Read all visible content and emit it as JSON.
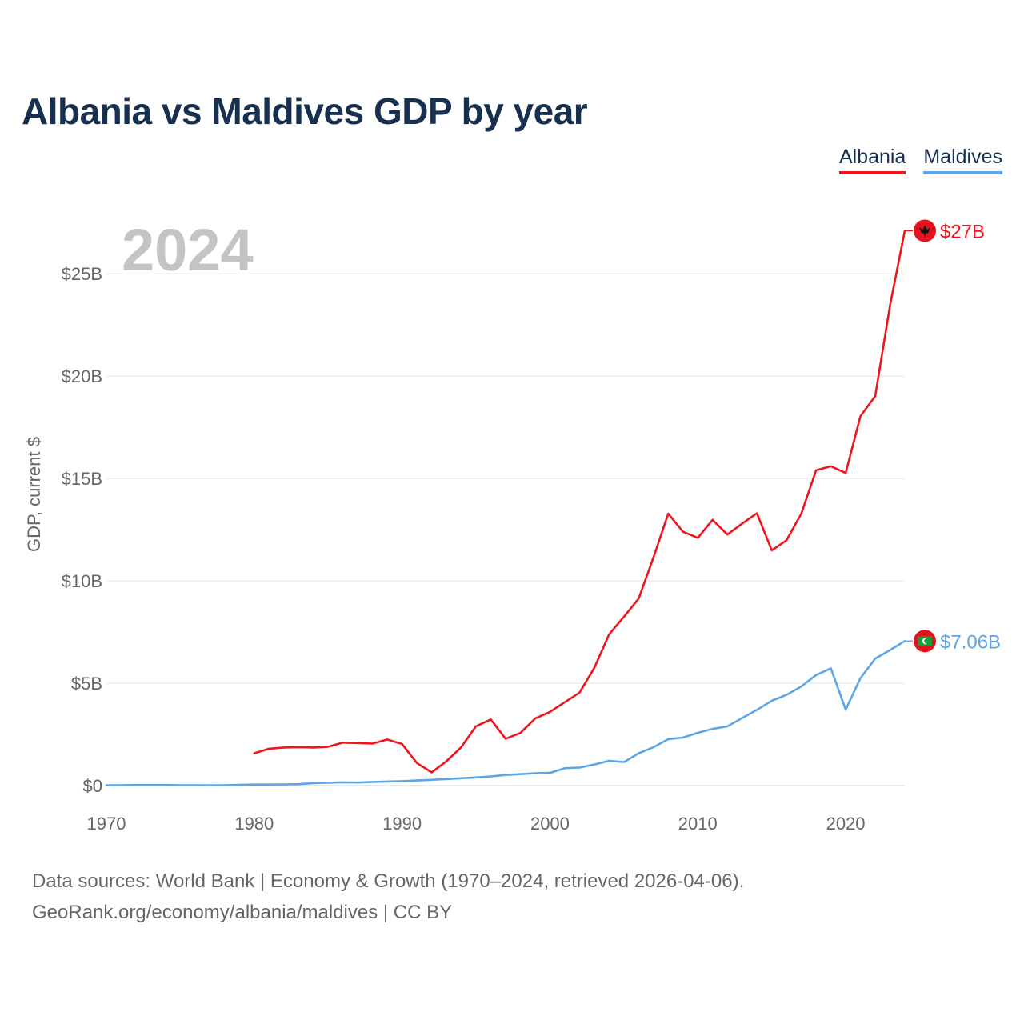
{
  "title": "Albania vs Maldives GDP by year",
  "chart_data": {
    "type": "line",
    "title": "Albania vs Maldives GDP by year",
    "ylabel": "GDP, current $",
    "xlabel": "",
    "year_label": "2024",
    "xlim": [
      1970,
      2024
    ],
    "ylim": [
      0,
      27
    ],
    "x_ticks": [
      1970,
      1980,
      1990,
      2000,
      2010,
      2020
    ],
    "y_ticks": [
      {
        "value": 0,
        "label": "$0"
      },
      {
        "value": 5,
        "label": "$5B"
      },
      {
        "value": 10,
        "label": "$10B"
      },
      {
        "value": 15,
        "label": "$15B"
      },
      {
        "value": 20,
        "label": "$20B"
      },
      {
        "value": 25,
        "label": "$25B"
      }
    ],
    "series": [
      {
        "name": "Albania",
        "color": "#f0151a",
        "end_label": "$27B",
        "x": [
          1980,
          1981,
          1982,
          1983,
          1984,
          1985,
          1986,
          1987,
          1988,
          1989,
          1990,
          1991,
          1992,
          1993,
          1994,
          1995,
          1996,
          1997,
          1998,
          1999,
          2000,
          2001,
          2002,
          2003,
          2004,
          2005,
          2006,
          2007,
          2008,
          2009,
          2010,
          2011,
          2012,
          2013,
          2014,
          2015,
          2016,
          2017,
          2018,
          2019,
          2020,
          2021,
          2022,
          2023,
          2024
        ],
        "values": [
          1.58,
          1.8,
          1.86,
          1.88,
          1.86,
          1.9,
          2.1,
          2.08,
          2.05,
          2.25,
          2.03,
          1.1,
          0.65,
          1.19,
          1.88,
          2.9,
          3.23,
          2.29,
          2.57,
          3.28,
          3.6,
          4.07,
          4.54,
          5.75,
          7.39,
          8.25,
          9.13,
          11.14,
          13.28,
          12.4,
          12.1,
          12.98,
          12.26,
          12.8,
          13.3,
          11.49,
          11.98,
          13.28,
          15.4,
          15.6,
          15.27,
          18.05,
          19.02,
          23.45,
          27.1
        ]
      },
      {
        "name": "Maldives",
        "color": "#5aa6e6",
        "end_label": "$7.06B",
        "x": [
          1970,
          1971,
          1972,
          1973,
          1974,
          1975,
          1976,
          1977,
          1978,
          1979,
          1980,
          1981,
          1982,
          1983,
          1984,
          1985,
          1986,
          1987,
          1988,
          1989,
          1990,
          1991,
          1992,
          1993,
          1994,
          1995,
          1996,
          1997,
          1998,
          1999,
          2000,
          2001,
          2002,
          2003,
          2004,
          2005,
          2006,
          2007,
          2008,
          2009,
          2010,
          2011,
          2012,
          2013,
          2014,
          2015,
          2016,
          2017,
          2018,
          2019,
          2020,
          2021,
          2022,
          2023,
          2024
        ],
        "values": [
          0.02,
          0.02,
          0.03,
          0.03,
          0.03,
          0.02,
          0.02,
          0.01,
          0.02,
          0.04,
          0.05,
          0.05,
          0.06,
          0.07,
          0.12,
          0.14,
          0.16,
          0.15,
          0.18,
          0.2,
          0.22,
          0.25,
          0.28,
          0.32,
          0.36,
          0.4,
          0.45,
          0.52,
          0.56,
          0.6,
          0.62,
          0.85,
          0.88,
          1.03,
          1.21,
          1.15,
          1.58,
          1.87,
          2.27,
          2.35,
          2.58,
          2.77,
          2.89,
          3.3,
          3.7,
          4.14,
          4.43,
          4.84,
          5.4,
          5.73,
          3.71,
          5.25,
          6.2,
          6.62,
          7.06
        ]
      }
    ]
  },
  "footer": {
    "line1": "Data sources: World Bank | Economy & Growth (1970–2024, retrieved 2026-04-06).",
    "line2": "GeoRank.org/economy/albania/maldives | CC BY"
  },
  "icons": {
    "albania": "albania-flag-icon",
    "maldives": "maldives-flag-icon"
  }
}
